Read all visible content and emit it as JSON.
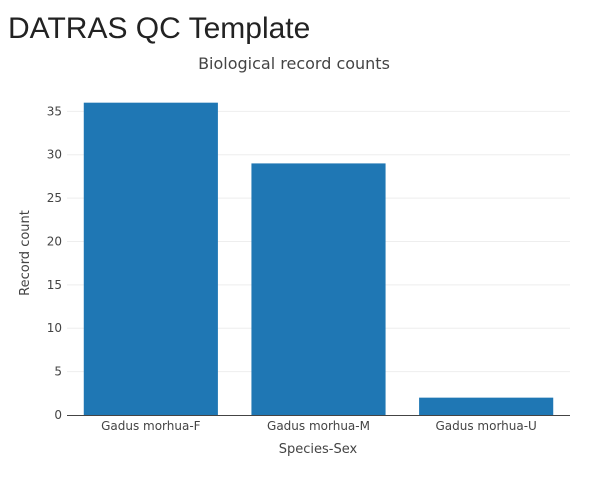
{
  "page": {
    "title": "DATRAS QC Template"
  },
  "chart_data": {
    "type": "bar",
    "title": "Biological record counts",
    "xlabel": "Species-Sex",
    "ylabel": "Record count",
    "categories": [
      "Gadus morhua-F",
      "Gadus morhua-M",
      "Gadus morhua-U"
    ],
    "values": [
      36,
      29,
      2
    ],
    "ylim": [
      0,
      37
    ],
    "yticks": [
      0,
      5,
      10,
      15,
      20,
      25,
      30,
      35
    ],
    "grid": true,
    "legend": "none",
    "bar_color": "#1f77b4"
  }
}
